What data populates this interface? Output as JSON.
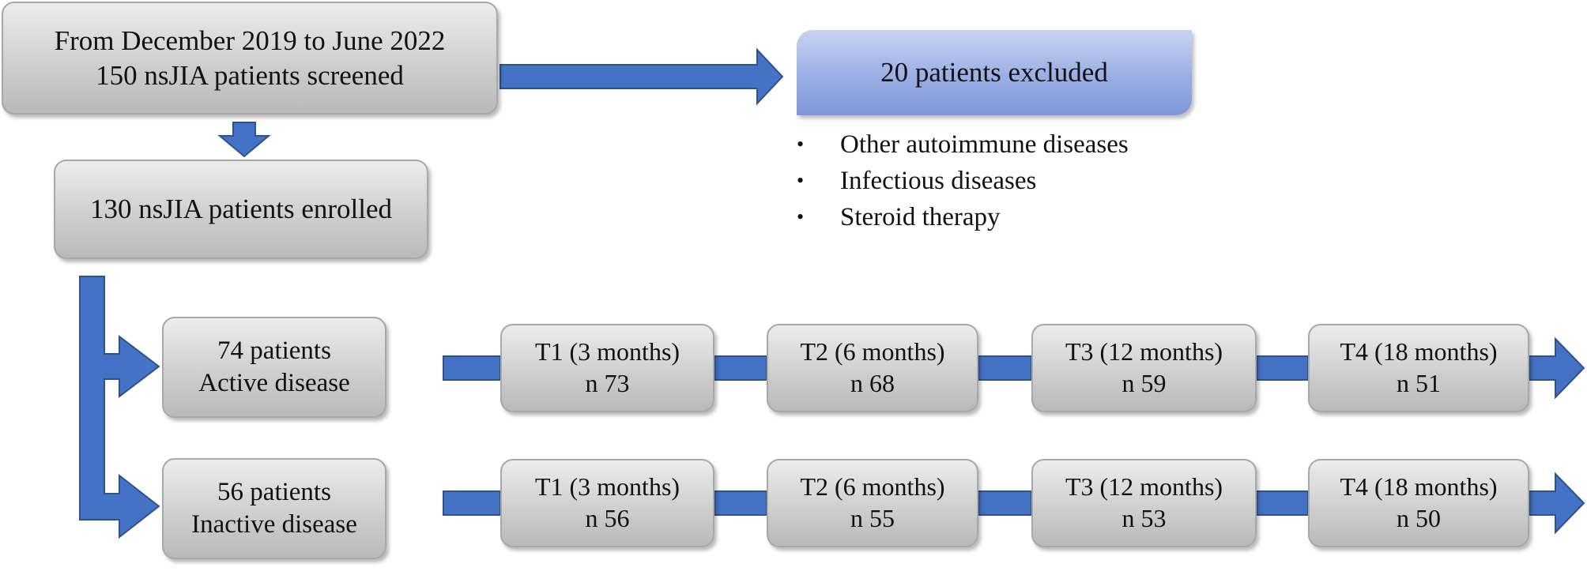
{
  "screening": {
    "line1": "From December 2019 to June 2022",
    "line2": "150 nsJIA patients screened"
  },
  "excluded": {
    "label": "20 patients excluded",
    "reasons": [
      "Other autoimmune diseases",
      "Infectious diseases",
      "Steroid therapy"
    ]
  },
  "enrolled": {
    "label": "130 nsJIA patients enrolled"
  },
  "groups": [
    {
      "line1": "74 patients",
      "line2": "Active disease",
      "timepoints": [
        {
          "label": "T1 (3 months)",
          "n": "n 73"
        },
        {
          "label": "T2 (6 months)",
          "n": "n 68"
        },
        {
          "label": "T3 (12 months)",
          "n": "n 59"
        },
        {
          "label": "T4 (18 months)",
          "n": "n 51"
        }
      ]
    },
    {
      "line1": "56 patients",
      "line2": "Inactive disease",
      "timepoints": [
        {
          "label": "T1 (3 months)",
          "n": "n 56"
        },
        {
          "label": "T2 (6 months)",
          "n": "n 55"
        },
        {
          "label": "T3 (12 months)",
          "n": "n 53"
        },
        {
          "label": "T4 (18 months)",
          "n": "n 50"
        }
      ]
    }
  ],
  "colors": {
    "arrow_fill": "#4472c4",
    "arrow_stroke": "#2f528f",
    "box_fill": "#cfcfcf",
    "excluded_fill": "#9aaee4"
  }
}
